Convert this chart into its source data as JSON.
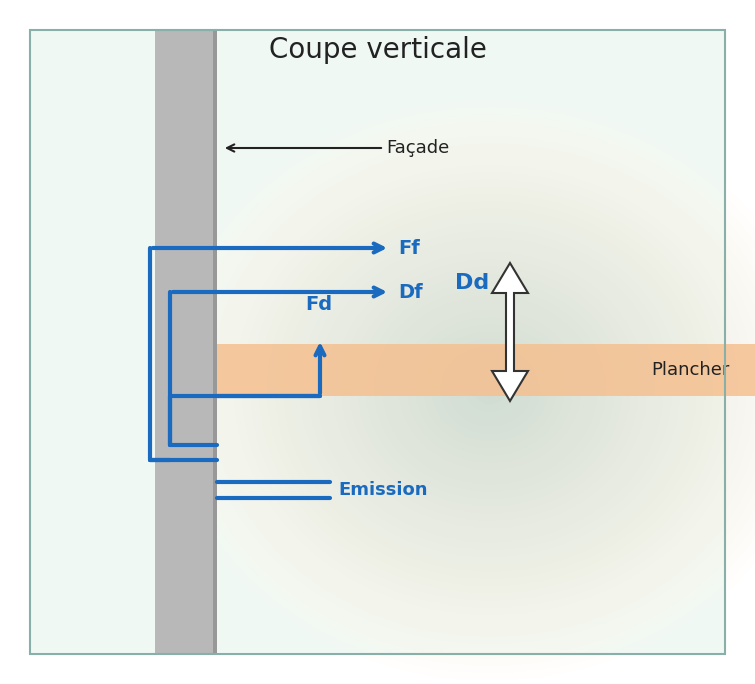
{
  "title": "Coupe verticale",
  "title_fontsize": 20,
  "background_color": "#ffffff",
  "bg_light_color": "#e8f4f0",
  "bg_dark_color": "#c8e8e0",
  "facade_color": "#b8b8b8",
  "facade_dark_color": "#a0a0a0",
  "floor_color": "#f5c090",
  "blue_color": "#1a6abf",
  "black_color": "#222222",
  "facade_label": "Façade",
  "floor_label": "Plancher",
  "Ff_label": "Ff",
  "Df_label": "Df",
  "Fd_label": "Fd",
  "Dd_label": "Dd",
  "Emission_label": "Emission",
  "fig_width": 7.55,
  "fig_height": 6.84,
  "dpi": 100
}
